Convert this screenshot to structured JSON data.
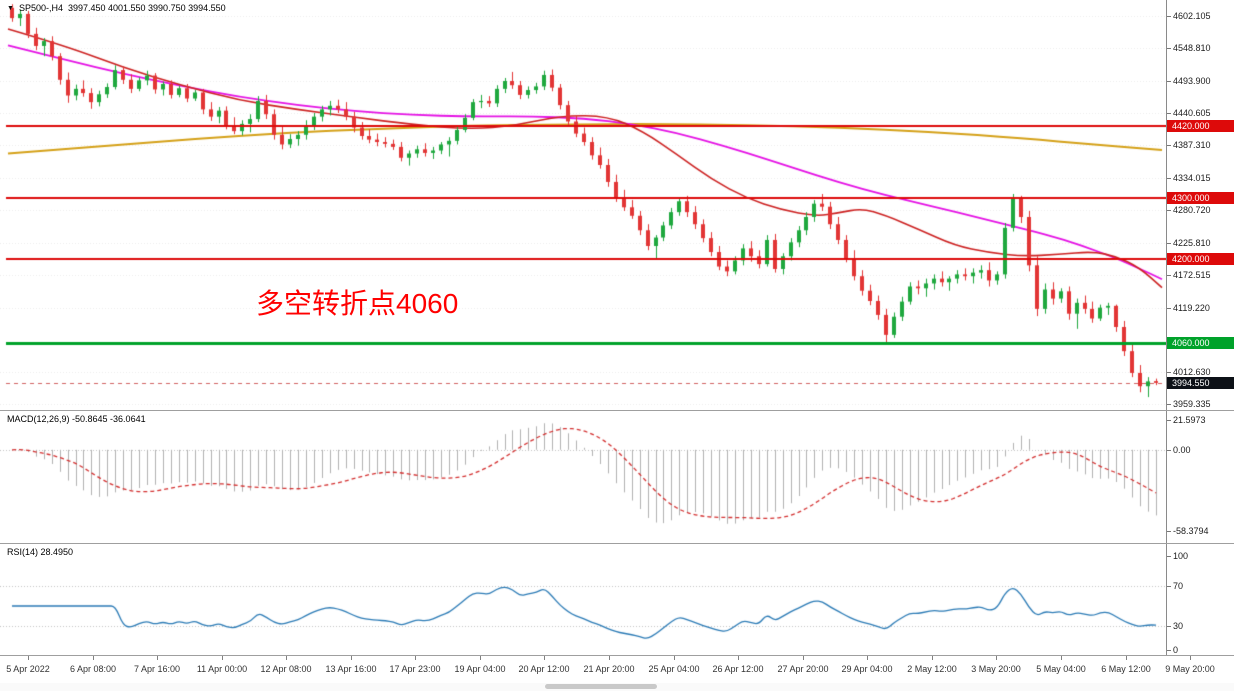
{
  "chart": {
    "symbol": "SP500-,H4",
    "ohlc": "3997.450 4001.550 3990.750 3994.550",
    "marker_icon": "▼",
    "annotation": {
      "text": "多空转折点4060",
      "color": "#ff0000"
    },
    "price_scale": {
      "max": 4628,
      "min": 3948
    },
    "price_axis_labels": [
      "4602.105",
      "4548.810",
      "4493.900",
      "4440.605",
      "4387.310",
      "4334.015",
      "4280.720",
      "4225.810",
      "4172.515",
      "4119.220",
      "4012.630",
      "3959.335"
    ],
    "hlines": [
      {
        "price": 4420.0,
        "label": "4420.000",
        "color": "#dd0a0a",
        "thickness": 2
      },
      {
        "price": 4300.0,
        "label": "4300.000",
        "color": "#dd0a0a",
        "thickness": 2
      },
      {
        "price": 4200.0,
        "label": "4200.000",
        "color": "#dd0a0a",
        "thickness": 2
      },
      {
        "price": 4060.0,
        "label": "4060.000",
        "color": "#00a22a",
        "thickness": 3
      }
    ],
    "current_price": {
      "price": 3994.55,
      "label": "3994.550",
      "box_color": "#0d1117"
    },
    "colors": {
      "up": "#1fa83e",
      "down": "#e23535",
      "ma_fast": "#cc2020",
      "ma_medium": "#e411e4",
      "ma_slow": "#d4a017",
      "grid": "#ececec"
    }
  },
  "macd": {
    "label": "MACD(12,26,9) -50.8645 -36.0641",
    "axis_labels": [
      "21.5973",
      "0.00",
      "-58.3794"
    ],
    "scale": {
      "max": 28,
      "min": -68
    },
    "params": [
      12,
      26,
      9
    ],
    "histogram_color": "#b0b0b0",
    "signal_color": "#d32f2f"
  },
  "rsi": {
    "label": "RSI(14) 28.4950",
    "axis_labels": [
      "100",
      "70",
      "30",
      "0"
    ],
    "levels": [
      70,
      30
    ],
    "scale": {
      "max": 112,
      "min": 0
    },
    "period": 14,
    "line_color": "#2a7ab5"
  },
  "time_axis": [
    "5 Apr 2022",
    "6 Apr 08:00",
    "7 Apr 16:00",
    "11 Apr 00:00",
    "12 Apr 08:00",
    "13 Apr 16:00",
    "17 Apr 23:00",
    "19 Apr 04:00",
    "20 Apr 12:00",
    "21 Apr 20:00",
    "25 Apr 04:00",
    "26 Apr 12:00",
    "27 Apr 20:00",
    "29 Apr 04:00",
    "2 May 12:00",
    "3 May 20:00",
    "5 May 04:00",
    "6 May 12:00",
    "9 May 20:00"
  ],
  "chart_data": {
    "type": "candlestick",
    "title": "SP500- H4 with MACD(12,26,9) and RSI(14)",
    "candles_ohlc": [
      [
        4615,
        4621,
        4592,
        4598
      ],
      [
        4598,
        4612,
        4585,
        4605
      ],
      [
        4605,
        4610,
        4565,
        4572
      ],
      [
        4572,
        4582,
        4545,
        4552
      ],
      [
        4552,
        4565,
        4535,
        4560
      ],
      [
        4560,
        4568,
        4528,
        4535
      ],
      [
        4535,
        4540,
        4488,
        4496
      ],
      [
        4496,
        4508,
        4458,
        4470
      ],
      [
        4470,
        4488,
        4462,
        4481
      ],
      [
        4481,
        4495,
        4468,
        4474
      ],
      [
        4474,
        4482,
        4448,
        4459
      ],
      [
        4459,
        4478,
        4452,
        4472
      ],
      [
        4472,
        4490,
        4466,
        4484
      ],
      [
        4484,
        4520,
        4480,
        4512
      ],
      [
        4512,
        4518,
        4489,
        4496
      ],
      [
        4496,
        4505,
        4474,
        4481
      ],
      [
        4481,
        4500,
        4477,
        4495
      ],
      [
        4495,
        4511,
        4487,
        4503
      ],
      [
        4503,
        4507,
        4473,
        4480
      ],
      [
        4480,
        4493,
        4470,
        4489
      ],
      [
        4489,
        4495,
        4465,
        4471
      ],
      [
        4471,
        4486,
        4467,
        4482
      ],
      [
        4482,
        4489,
        4459,
        4465
      ],
      [
        4465,
        4479,
        4461,
        4475
      ],
      [
        4475,
        4481,
        4439,
        4447
      ],
      [
        4447,
        4459,
        4428,
        4435
      ],
      [
        4435,
        4451,
        4424,
        4445
      ],
      [
        4445,
        4452,
        4414,
        4420
      ],
      [
        4420,
        4434,
        4406,
        4411
      ],
      [
        4411,
        4429,
        4404,
        4423
      ],
      [
        4423,
        4439,
        4409,
        4431
      ],
      [
        4431,
        4469,
        4426,
        4461
      ],
      [
        4461,
        4471,
        4431,
        4439
      ],
      [
        4439,
        4447,
        4397,
        4405
      ],
      [
        4405,
        4418,
        4381,
        4389
      ],
      [
        4389,
        4406,
        4383,
        4398
      ],
      [
        4398,
        4411,
        4387,
        4405
      ],
      [
        4405,
        4429,
        4397,
        4421
      ],
      [
        4421,
        4441,
        4413,
        4435
      ],
      [
        4435,
        4453,
        4427,
        4447
      ],
      [
        4447,
        4461,
        4437,
        4453
      ],
      [
        4453,
        4463,
        4441,
        4447
      ],
      [
        4447,
        4459,
        4429,
        4435
      ],
      [
        4435,
        4443,
        4409,
        4417
      ],
      [
        4417,
        4426,
        4397,
        4403
      ],
      [
        4403,
        4414,
        4391,
        4397
      ],
      [
        4397,
        4407,
        4386,
        4393
      ],
      [
        4393,
        4401,
        4384,
        4390
      ],
      [
        4390,
        4397,
        4380,
        4385
      ],
      [
        4385,
        4393,
        4361,
        4367
      ],
      [
        4367,
        4379,
        4354,
        4374
      ],
      [
        4374,
        4387,
        4367,
        4381
      ],
      [
        4381,
        4391,
        4369,
        4375
      ],
      [
        4375,
        4385,
        4365,
        4379
      ],
      [
        4379,
        4393,
        4373,
        4389
      ],
      [
        4389,
        4401,
        4369,
        4395
      ],
      [
        4395,
        4419,
        4389,
        4413
      ],
      [
        4413,
        4439,
        4409,
        4433
      ],
      [
        4433,
        4464,
        4429,
        4459
      ],
      [
        4459,
        4471,
        4449,
        4461
      ],
      [
        4461,
        4469,
        4451,
        4457
      ],
      [
        4457,
        4487,
        4451,
        4481
      ],
      [
        4481,
        4499,
        4474,
        4494
      ],
      [
        4494,
        4509,
        4481,
        4487
      ],
      [
        4487,
        4494,
        4464,
        4471
      ],
      [
        4471,
        4485,
        4465,
        4479
      ],
      [
        4479,
        4491,
        4473,
        4485
      ],
      [
        4485,
        4511,
        4479,
        4504
      ],
      [
        4504,
        4513,
        4477,
        4483
      ],
      [
        4483,
        4489,
        4447,
        4454
      ],
      [
        4454,
        4461,
        4419,
        4427
      ],
      [
        4427,
        4437,
        4401,
        4407
      ],
      [
        4407,
        4417,
        4387,
        4393
      ],
      [
        4393,
        4401,
        4364,
        4371
      ],
      [
        4371,
        4384,
        4349,
        4355
      ],
      [
        4355,
        4365,
        4319,
        4327
      ],
      [
        4327,
        4339,
        4294,
        4301
      ],
      [
        4301,
        4314,
        4279,
        4285
      ],
      [
        4285,
        4297,
        4266,
        4271
      ],
      [
        4271,
        4279,
        4239,
        4247
      ],
      [
        4247,
        4257,
        4214,
        4221
      ],
      [
        4221,
        4239,
        4199,
        4235
      ],
      [
        4235,
        4261,
        4229,
        4255
      ],
      [
        4255,
        4284,
        4249,
        4277
      ],
      [
        4277,
        4301,
        4271,
        4295
      ],
      [
        4295,
        4304,
        4269,
        4277
      ],
      [
        4277,
        4287,
        4249,
        4257
      ],
      [
        4257,
        4265,
        4227,
        4234
      ],
      [
        4234,
        4244,
        4204,
        4211
      ],
      [
        4211,
        4221,
        4181,
        4187
      ],
      [
        4187,
        4197,
        4171,
        4179
      ],
      [
        4179,
        4204,
        4174,
        4197
      ],
      [
        4197,
        4224,
        4189,
        4217
      ],
      [
        4217,
        4229,
        4195,
        4204
      ],
      [
        4204,
        4214,
        4184,
        4191
      ],
      [
        4191,
        4239,
        4187,
        4231
      ],
      [
        4231,
        4241,
        4177,
        4183
      ],
      [
        4183,
        4209,
        4174,
        4204
      ],
      [
        4204,
        4234,
        4197,
        4227
      ],
      [
        4227,
        4254,
        4219,
        4247
      ],
      [
        4247,
        4277,
        4239,
        4269
      ],
      [
        4269,
        4297,
        4261,
        4291
      ],
      [
        4291,
        4307,
        4279,
        4286
      ],
      [
        4286,
        4294,
        4249,
        4257
      ],
      [
        4257,
        4269,
        4224,
        4231
      ],
      [
        4231,
        4239,
        4194,
        4201
      ],
      [
        4201,
        4214,
        4164,
        4171
      ],
      [
        4171,
        4181,
        4139,
        4147
      ],
      [
        4147,
        4157,
        4123,
        4130
      ],
      [
        4130,
        4139,
        4099,
        4107
      ],
      [
        4107,
        4117,
        4062,
        4074
      ],
      [
        4074,
        4111,
        4069,
        4104
      ],
      [
        4104,
        4137,
        4097,
        4129
      ],
      [
        4129,
        4161,
        4124,
        4154
      ],
      [
        4154,
        4164,
        4141,
        4151
      ],
      [
        4151,
        4167,
        4137,
        4159
      ],
      [
        4159,
        4174,
        4149,
        4167
      ],
      [
        4167,
        4179,
        4154,
        4161
      ],
      [
        4161,
        4171,
        4147,
        4167
      ],
      [
        4167,
        4181,
        4159,
        4174
      ],
      [
        4174,
        4184,
        4164,
        4171
      ],
      [
        4171,
        4184,
        4159,
        4177
      ],
      [
        4177,
        4189,
        4167,
        4181
      ],
      [
        4181,
        4194,
        4154,
        4164
      ],
      [
        4164,
        4179,
        4157,
        4174
      ],
      [
        4174,
        4259,
        4167,
        4251
      ],
      [
        4251,
        4307,
        4245,
        4299
      ],
      [
        4299,
        4304,
        4259,
        4269
      ],
      [
        4269,
        4279,
        4179,
        4189
      ],
      [
        4189,
        4204,
        4105,
        4117
      ],
      [
        4117,
        4159,
        4109,
        4149
      ],
      [
        4149,
        4161,
        4124,
        4134
      ],
      [
        4134,
        4151,
        4127,
        4146
      ],
      [
        4146,
        4154,
        4099,
        4109
      ],
      [
        4109,
        4134,
        4084,
        4127
      ],
      [
        4127,
        4139,
        4109,
        4117
      ],
      [
        4117,
        4129,
        4094,
        4101
      ],
      [
        4101,
        4124,
        4097,
        4119
      ],
      [
        4119,
        4127,
        4107,
        4122
      ],
      [
        4122,
        4124,
        4079,
        4087
      ],
      [
        4087,
        4097,
        4039,
        4047
      ],
      [
        4047,
        4059,
        4004,
        4011
      ],
      [
        4011,
        4024,
        3979,
        3989
      ],
      [
        3989,
        4004,
        3971,
        3997
      ],
      [
        3997.45,
        4001.55,
        3990.75,
        3994.55
      ]
    ],
    "ma_fast_red": [
      [
        0,
        4580
      ],
      [
        0.05,
        4552
      ],
      [
        0.1,
        4516
      ],
      [
        0.15,
        4487
      ],
      [
        0.2,
        4462
      ],
      [
        0.25,
        4447
      ],
      [
        0.3,
        4434
      ],
      [
        0.35,
        4422
      ],
      [
        0.4,
        4414
      ],
      [
        0.44,
        4420
      ],
      [
        0.48,
        4437
      ],
      [
        0.52,
        4436
      ],
      [
        0.55,
        4411
      ],
      [
        0.58,
        4372
      ],
      [
        0.61,
        4331
      ],
      [
        0.64,
        4300
      ],
      [
        0.67,
        4281
      ],
      [
        0.7,
        4270
      ],
      [
        0.72,
        4276
      ],
      [
        0.74,
        4283
      ],
      [
        0.76,
        4272
      ],
      [
        0.79,
        4248
      ],
      [
        0.82,
        4222
      ],
      [
        0.85,
        4210
      ],
      [
        0.88,
        4204
      ],
      [
        0.91,
        4207
      ],
      [
        0.94,
        4212
      ],
      [
        0.96,
        4204
      ],
      [
        0.98,
        4186
      ],
      [
        1,
        4152
      ]
    ],
    "ma_medium_magenta": [
      [
        0,
        4553
      ],
      [
        0.05,
        4529
      ],
      [
        0.1,
        4506
      ],
      [
        0.15,
        4486
      ],
      [
        0.2,
        4468
      ],
      [
        0.25,
        4454
      ],
      [
        0.3,
        4444
      ],
      [
        0.35,
        4438
      ],
      [
        0.4,
        4435
      ],
      [
        0.45,
        4436
      ],
      [
        0.5,
        4432
      ],
      [
        0.54,
        4423
      ],
      [
        0.58,
        4408
      ],
      [
        0.62,
        4387
      ],
      [
        0.66,
        4363
      ],
      [
        0.7,
        4338
      ],
      [
        0.74,
        4315
      ],
      [
        0.78,
        4296
      ],
      [
        0.82,
        4278
      ],
      [
        0.86,
        4259
      ],
      [
        0.9,
        4240
      ],
      [
        0.93,
        4222
      ],
      [
        0.96,
        4201
      ],
      [
        0.98,
        4184
      ],
      [
        1,
        4166
      ]
    ],
    "ma_slow_orange": [
      [
        0,
        4374
      ],
      [
        0.08,
        4386
      ],
      [
        0.16,
        4398
      ],
      [
        0.24,
        4408
      ],
      [
        0.32,
        4415
      ],
      [
        0.4,
        4420
      ],
      [
        0.48,
        4422
      ],
      [
        0.56,
        4423
      ],
      [
        0.64,
        4421
      ],
      [
        0.72,
        4417
      ],
      [
        0.8,
        4410
      ],
      [
        0.88,
        4399
      ],
      [
        0.94,
        4389
      ],
      [
        1,
        4380
      ]
    ]
  }
}
